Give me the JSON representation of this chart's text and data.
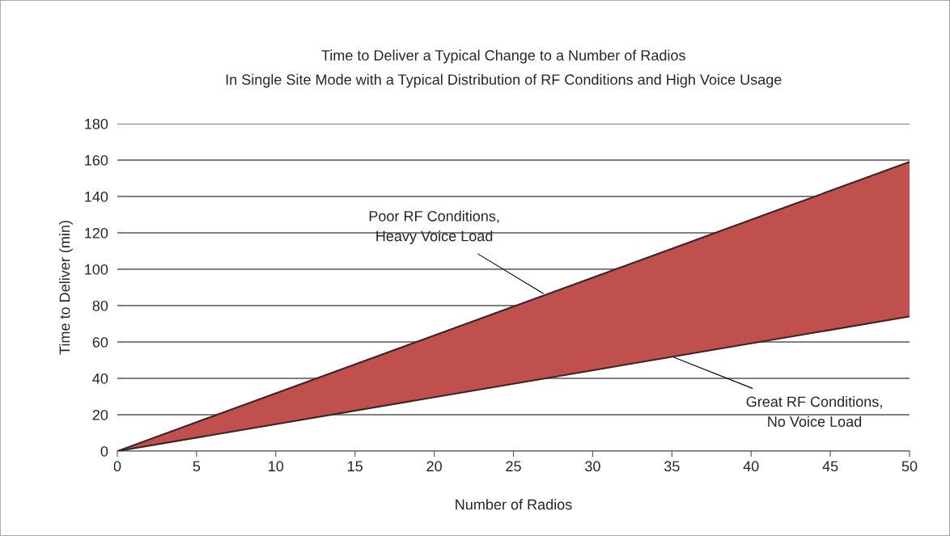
{
  "chart_data": {
    "type": "line",
    "title": "Time to Deliver a Typical Change to a Number of Radios",
    "subtitle": "In Single Site Mode with a Typical Distribution of RF Conditions and High Voice Usage",
    "xlabel": "Number of Radios",
    "ylabel": "Time to Deliver (min)",
    "x": [
      0,
      50
    ],
    "series": [
      {
        "color": "#3b2323",
        "values": [
          0,
          159
        ],
        "lower": [
          0,
          74
        ],
        "upper": [
          0,
          159
        ],
        "colors": [
          "#3b2323",
          "#c0504d"
        ]
      },
      {
        "color": "#3b2323",
        "values": [
          0,
          74
        ]
      }
    ],
    "xlim": [
      0,
      50
    ],
    "xticks": [
      0,
      5,
      10,
      15,
      20,
      25,
      30,
      35,
      40,
      45,
      50
    ],
    "ylim": [
      0,
      180
    ],
    "yticks": [
      0,
      20,
      40,
      60,
      80,
      100,
      120,
      140,
      160,
      180
    ],
    "grid": "y",
    "legend": false,
    "annotations": [
      {
        "text": "Poor RF Conditions,\nHeavy Voice Load",
        "x": 27,
        "y": 86
      },
      {
        "text": "Great RF Conditions,\nNo Voice Load",
        "x": 35,
        "y": 52
      }
    ]
  }
}
